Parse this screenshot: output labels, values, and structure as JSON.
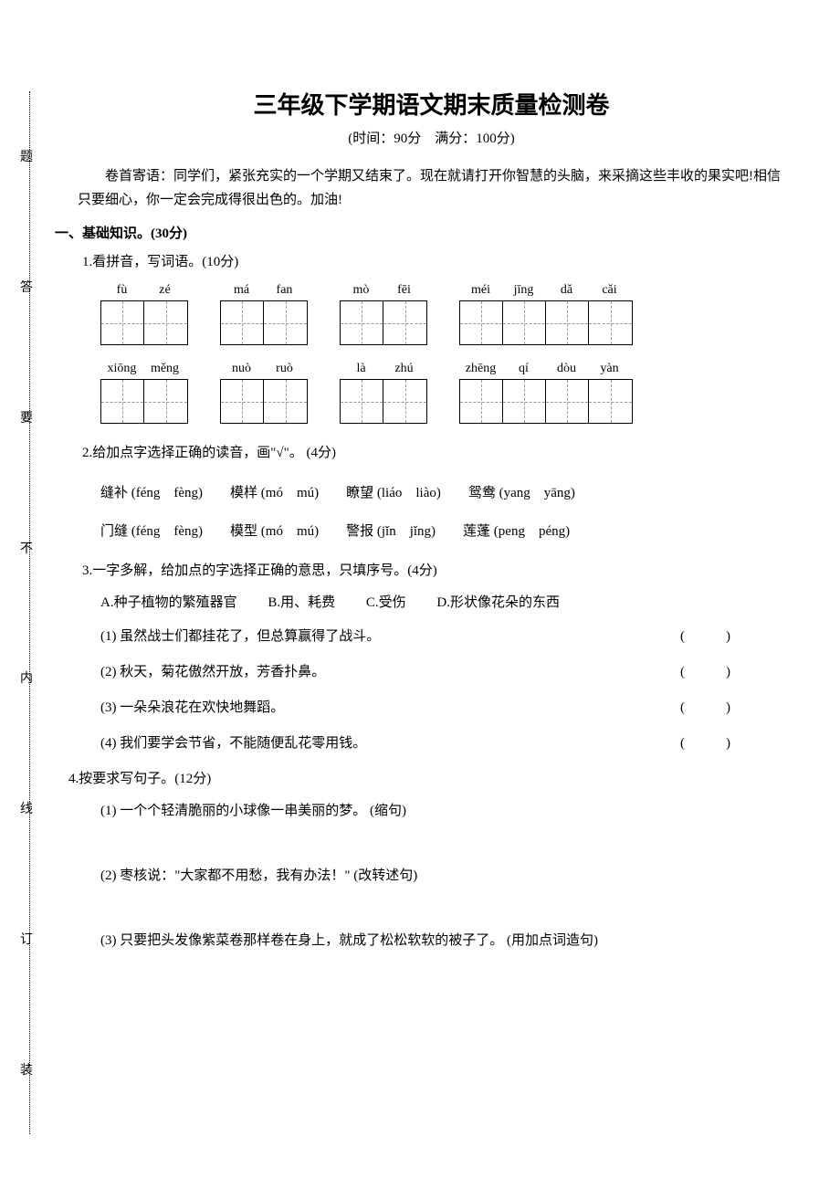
{
  "binding_chars": [
    "题",
    "答",
    "要",
    "不",
    "内",
    "线",
    "订",
    "装"
  ],
  "title": "三年级下学期语文期末质量检测卷",
  "subtitle": "(时间：90分　满分：100分)",
  "preface": "卷首寄语：同学们，紧张充实的一个学期又结束了。现在就请打开你智慧的头脑，来采摘这些丰收的果实吧!相信只要细心，你一定会完成得很出色的。加油!",
  "section1_header": "一、基础知识。(30分)",
  "q1": {
    "header": "1.看拼音，写词语。(10分)",
    "row1": [
      {
        "pinyin": [
          "fù",
          "zé"
        ],
        "count": 2
      },
      {
        "pinyin": [
          "má",
          "fan"
        ],
        "count": 2
      },
      {
        "pinyin": [
          "mò",
          "fēi"
        ],
        "count": 2
      },
      {
        "pinyin": [
          "méi",
          "jīng",
          "dǎ",
          "cǎi"
        ],
        "count": 4
      }
    ],
    "row2": [
      {
        "pinyin": [
          "xiōng",
          "měng"
        ],
        "count": 2
      },
      {
        "pinyin": [
          "nuò",
          "ruò"
        ],
        "count": 2
      },
      {
        "pinyin": [
          "là",
          "zhú"
        ],
        "count": 2
      },
      {
        "pinyin": [
          "zhēng",
          "qí",
          "dòu",
          "yàn"
        ],
        "count": 4
      }
    ]
  },
  "q2": {
    "header": "2.给加点字选择正确的读音，画\"√\"。 (4分)",
    "line1": [
      "缝补 (féng　fèng)",
      "模样 (mó　mú)",
      "瞭望 (liáo　liào)",
      "鸳鸯 (yang　yāng)"
    ],
    "line2": [
      "门缝 (féng　fèng)",
      "模型 (mó　mú)",
      "警报 (jǐn　jǐng)",
      "莲蓬 (peng　péng)"
    ]
  },
  "q3": {
    "header": "3.一字多解，给加点的字选择正确的意思，只填序号。(4分)",
    "options": {
      "a": "A.种子植物的繁殖器官",
      "b": "B.用、耗费",
      "c": "C.受伤",
      "d": "D.形状像花朵的东西"
    },
    "items": [
      "(1) 虽然战士们都挂花了，但总算赢得了战斗。",
      "(2) 秋天，菊花傲然开放，芳香扑鼻。",
      "(3) 一朵朵浪花在欢快地舞蹈。",
      "(4) 我们要学会节省，不能随便乱花零用钱。"
    ],
    "blank": "(　　　)"
  },
  "q4": {
    "header": "4.按要求写句子。(12分)",
    "items": [
      "(1) 一个个轻清脆丽的小球像一串美丽的梦。 (缩句)",
      "(2) 枣核说：\"大家都不用愁，我有办法！\" (改转述句)",
      "(3) 只要把头发像紫菜卷那样卷在身上，就成了松松软软的被子了。 (用加点词造句)"
    ]
  }
}
